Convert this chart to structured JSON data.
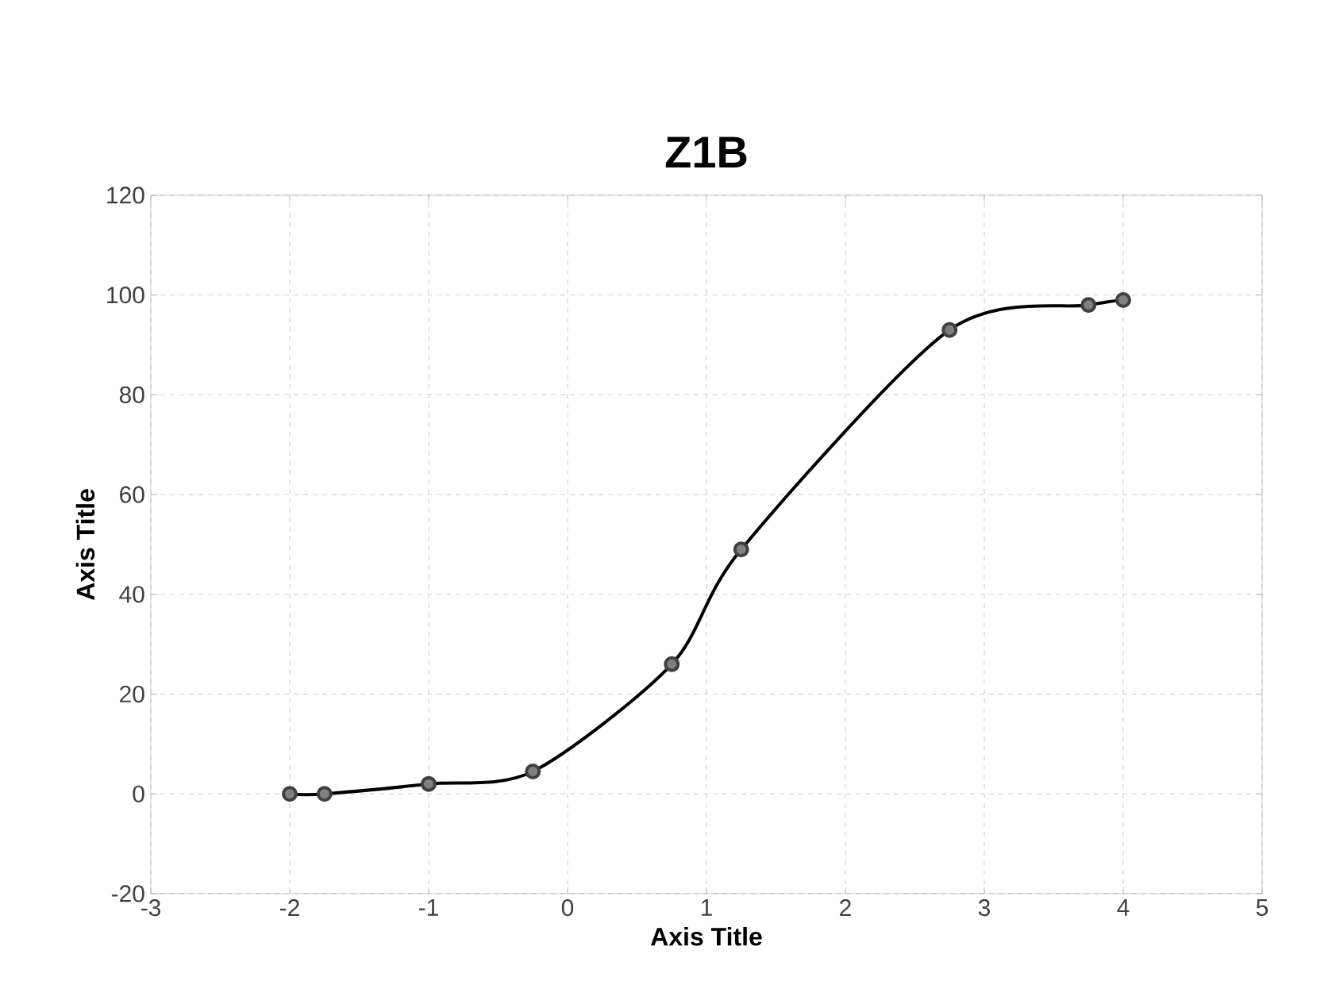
{
  "chart_data": {
    "type": "line",
    "title": "Z1B",
    "xlabel": "Axis Title",
    "ylabel": "Axis Title",
    "series": [
      {
        "color": "#000000",
        "x": [
          -2,
          -1.75,
          -1,
          -0.25,
          0.75,
          1.25,
          2.75,
          3.75,
          4
        ],
        "values": [
          0,
          0,
          2,
          4.5,
          26,
          49,
          93,
          98,
          99
        ]
      }
    ],
    "xlim": [
      -3,
      5
    ],
    "ylim": [
      -20,
      120
    ],
    "xticks": [
      -3,
      -2,
      -1,
      0,
      1,
      2,
      3,
      4,
      5
    ],
    "yticks": [
      -20,
      0,
      20,
      40,
      60,
      80,
      100,
      120
    ],
    "grid": true,
    "marker": "circle",
    "line_style": "solid"
  }
}
